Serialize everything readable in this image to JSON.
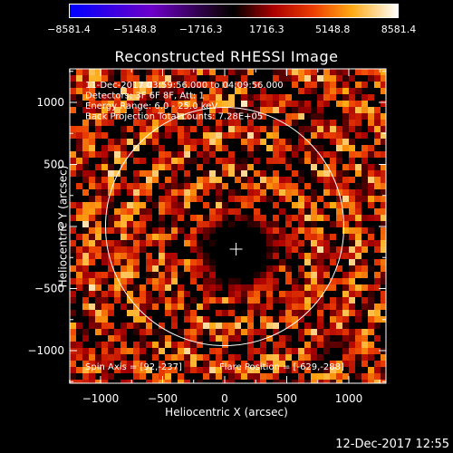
{
  "chart_data": {
    "type": "heatmap",
    "title": "Reconstructed RHESSI Image",
    "xlabel": "Heliocentric X (arcsec)",
    "ylabel": "Heliocentric Y (arcsec)",
    "xlim": [
      -1290,
      1290
    ],
    "ylim": [
      -1290,
      1290
    ],
    "xticks": [
      -1000,
      -500,
      0,
      500,
      1000
    ],
    "yticks": [
      -1000,
      -500,
      0,
      500,
      1000
    ],
    "xtick_labels": [
      "−1000",
      "−500",
      "0",
      "500",
      "1000"
    ],
    "ytick_labels": [
      "−1000",
      "−500",
      "0",
      "500",
      "1000"
    ],
    "colorbar": {
      "range": [
        -8581.4,
        8581.4
      ],
      "tick_values": [
        -8581.4,
        -5148.8,
        -1716.3,
        1716.3,
        5148.8,
        8581.4
      ],
      "tick_labels": [
        "−8581.4",
        "−5148.8",
        "−1716.3",
        "1716.3",
        "5148.8",
        "8581.4"
      ]
    },
    "annotations": [
      "11-Dec-2017 03:59:56.000 to 04:09:56.000",
      "Detectors: 3F 6F 8F, Att: 1",
      "Energy Range: 6.0 - 25.0 keV",
      "Back Projection    Total counts: 7.28E+05"
    ],
    "footer_annotations": {
      "spin_axis": "Spin Axis = [92,-237]",
      "flare_position": "Flare Position = [-629,-288]"
    },
    "solar_limb_radius": 960,
    "spin_axis_marker": [
      92,
      -237
    ],
    "grid": false
  },
  "footer": {
    "date": "12-Dec-2017 12:55"
  },
  "colors": {
    "background": "#000000",
    "foreground": "#ffffff"
  }
}
